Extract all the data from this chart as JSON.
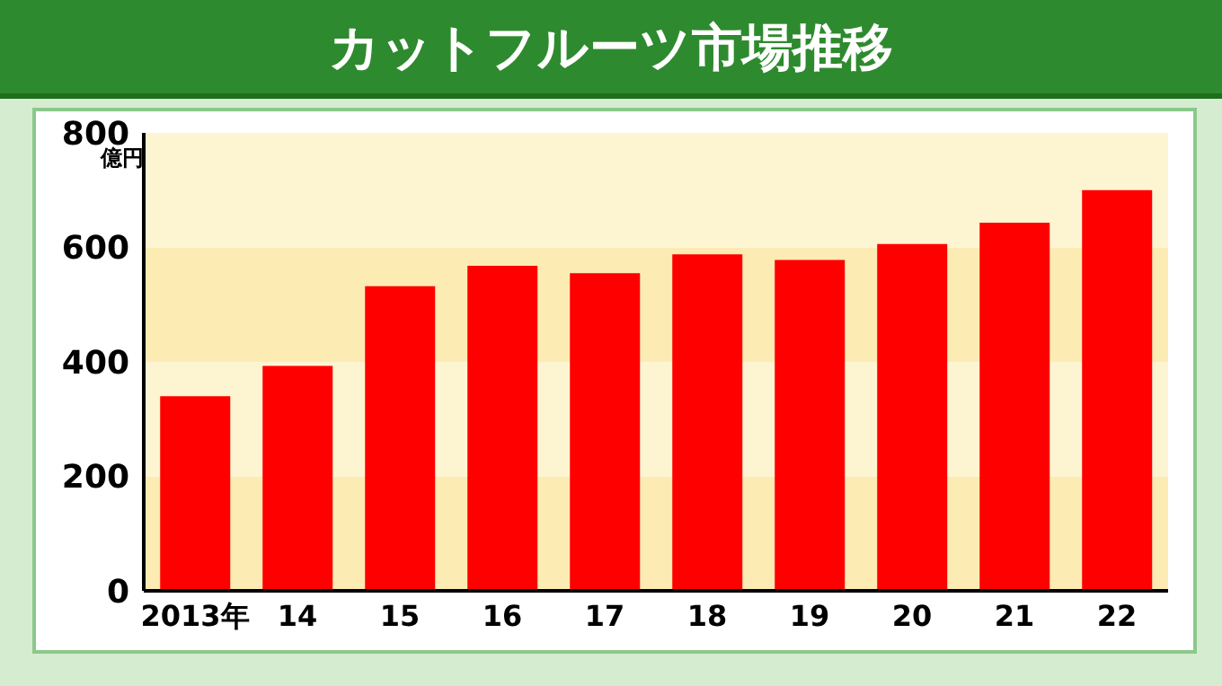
{
  "chart_data": {
    "type": "bar",
    "title": "カットフルーツ市場推移",
    "ylabel": "億円",
    "categories": [
      "2013年",
      "14",
      "15",
      "16",
      "17",
      "18",
      "19",
      "20",
      "21",
      "22"
    ],
    "values": [
      340,
      393,
      532,
      568,
      555,
      588,
      578,
      606,
      643,
      700
    ],
    "color": "#ff0000",
    "ylim": [
      0,
      800
    ],
    "yticks": [
      0,
      200,
      400,
      600,
      800
    ],
    "grid": false,
    "bands": [
      {
        "axis": "y",
        "from": 0,
        "to": 200,
        "color": "#fcebb3"
      },
      {
        "axis": "y",
        "from": 200,
        "to": 400,
        "color": "#fdf5d2"
      },
      {
        "axis": "y",
        "from": 400,
        "to": 600,
        "color": "#fcebb3"
      },
      {
        "axis": "y",
        "from": 600,
        "to": 800,
        "color": "#fdf5d2"
      }
    ]
  }
}
